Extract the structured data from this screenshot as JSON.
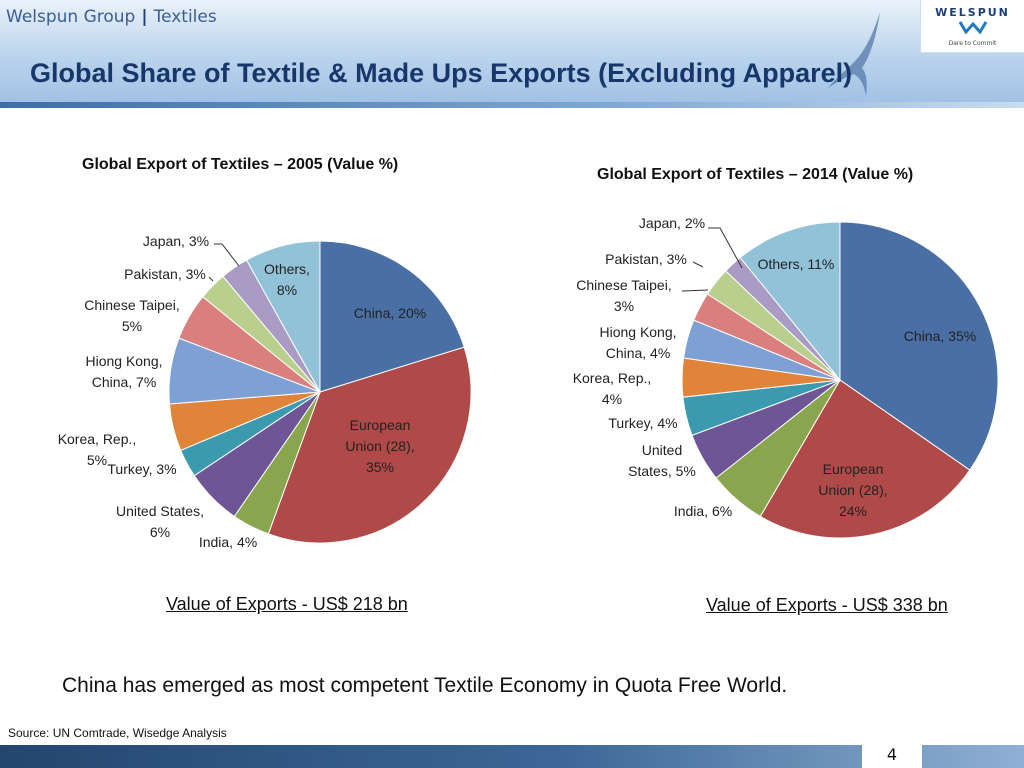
{
  "header": {
    "company": "Welspun Group",
    "division": "Textiles",
    "separator": "|",
    "logo_text": "WELSPUN",
    "logo_tagline": "Dare to Commit"
  },
  "page_title": "Global Share of Textile & Made Ups Exports (Excluding Apparel)",
  "chart_data": [
    {
      "type": "pie",
      "title": "Global Export of Textiles – 2005 (Value %)",
      "start_angle": "12 o'clock",
      "direction": "clockwise",
      "slices": [
        {
          "label": "China",
          "value": 20,
          "color": "#4a6fa5",
          "text_lines": [
            "China, 20%"
          ]
        },
        {
          "label": "European Union (28)",
          "value": 35,
          "color": "#b04a48",
          "text_lines": [
            "European",
            "Union (28),",
            "35%"
          ]
        },
        {
          "label": "India",
          "value": 4,
          "color": "#89a54e",
          "text_lines": [
            "India, 4%"
          ]
        },
        {
          "label": "United States",
          "value": 6,
          "color": "#6e5596",
          "text_lines": [
            "United States,",
            "6%"
          ]
        },
        {
          "label": "Turkey",
          "value": 3,
          "color": "#3c9ab0",
          "text_lines": [
            "Turkey, 3%"
          ]
        },
        {
          "label": "Korea, Rep.",
          "value": 5,
          "color": "#e0843a",
          "text_lines": [
            "Korea, Rep.,",
            "5%"
          ]
        },
        {
          "label": "Hiong Kong, China",
          "value": 7,
          "color": "#7ea0d4",
          "text_lines": [
            "Hiong Kong,",
            "China, 7%"
          ]
        },
        {
          "label": "Chinese Taipei",
          "value": 5,
          "color": "#d9807e",
          "text_lines": [
            "Chinese Taipei,",
            "5%"
          ]
        },
        {
          "label": "Pakistan",
          "value": 3,
          "color": "#b8cf8e",
          "text_lines": [
            "Pakistan, 3%"
          ]
        },
        {
          "label": "Japan",
          "value": 3,
          "color": "#a99bc4",
          "text_lines": [
            "Japan, 3%"
          ]
        },
        {
          "label": "Others",
          "value": 8,
          "color": "#92c2d8",
          "text_lines": [
            "Others,",
            "8%"
          ]
        }
      ],
      "footnote": "Value of Exports - US$ 218 bn"
    },
    {
      "type": "pie",
      "title": "Global Export of Textiles – 2014 (Value %)",
      "start_angle": "12 o'clock",
      "direction": "clockwise",
      "slices": [
        {
          "label": "China",
          "value": 35,
          "color": "#4a6fa5",
          "text_lines": [
            "China, 35%"
          ]
        },
        {
          "label": "European Union (28)",
          "value": 24,
          "color": "#b04a48",
          "text_lines": [
            "European",
            "Union (28),",
            "24%"
          ]
        },
        {
          "label": "India",
          "value": 6,
          "color": "#89a54e",
          "text_lines": [
            "India, 6%"
          ]
        },
        {
          "label": "United States",
          "value": 5,
          "color": "#6e5596",
          "text_lines": [
            "United",
            "States, 5%"
          ]
        },
        {
          "label": "Turkey",
          "value": 4,
          "color": "#3c9ab0",
          "text_lines": [
            "Turkey, 4%"
          ]
        },
        {
          "label": "Korea, Rep.",
          "value": 4,
          "color": "#e0843a",
          "text_lines": [
            "Korea, Rep.,",
            "4%"
          ]
        },
        {
          "label": "Hiong Kong, China",
          "value": 4,
          "color": "#7ea0d4",
          "text_lines": [
            "Hiong Kong,",
            "China, 4%"
          ]
        },
        {
          "label": "Chinese Taipei",
          "value": 3,
          "color": "#d9807e",
          "text_lines": [
            "Chinese Taipei,",
            "3%"
          ]
        },
        {
          "label": "Pakistan",
          "value": 3,
          "color": "#b8cf8e",
          "text_lines": [
            "Pakistan, 3%"
          ]
        },
        {
          "label": "Japan",
          "value": 2,
          "color": "#a99bc4",
          "text_lines": [
            "Japan, 2%"
          ]
        },
        {
          "label": "Others",
          "value": 11,
          "color": "#92c2d8",
          "text_lines": [
            "Others, 11%"
          ]
        }
      ],
      "footnote": "Value of Exports - US$ 338 bn"
    }
  ],
  "conclusion": "China has emerged as most competent Textile Economy in Quota Free World.",
  "source": "Source: UN Comtrade, Wisedge Analysis",
  "page_number": "4"
}
